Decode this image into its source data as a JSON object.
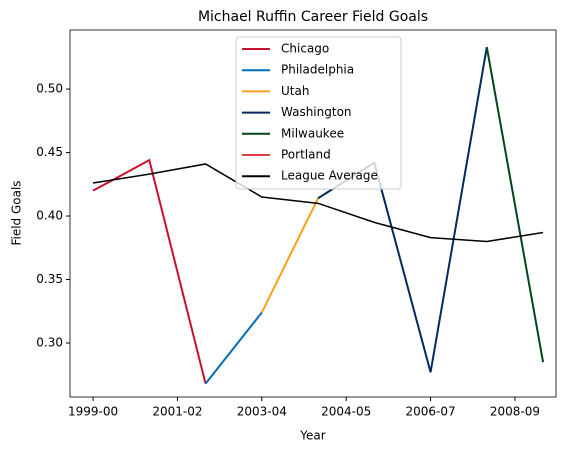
{
  "chart_data": {
    "type": "line",
    "title": "Michael Ruffin Career Field Goals",
    "x_label": "Year",
    "y_label": "Field Goals",
    "x": [
      0,
      1,
      2,
      3,
      4,
      5,
      6,
      7,
      8
    ],
    "xlim": [
      -0.41,
      8.23
    ],
    "xticks": [
      {
        "value": 0,
        "label": "1999-00"
      },
      {
        "value": 1.5,
        "label": "2001-02"
      },
      {
        "value": 3,
        "label": "2003-04"
      },
      {
        "value": 4.5,
        "label": "2004-05"
      },
      {
        "value": 6,
        "label": "2006-07"
      },
      {
        "value": 7.5,
        "label": "2008-09"
      }
    ],
    "ylim": [
      0.2575,
      0.5465
    ],
    "yticks": [
      {
        "value": 0.3,
        "label": "0.30"
      },
      0.35,
      {
        "value": 0.4,
        "label": "0.40"
      },
      0.45,
      {
        "value": 0.5,
        "label": "0.50"
      }
    ],
    "legend": "upper center",
    "series": [
      {
        "name": "Chicago",
        "color": "#c8102e",
        "values": [
          0.42,
          0.444,
          0.268,
          null,
          null,
          null,
          null,
          null,
          null
        ]
      },
      {
        "name": "Philadelphia",
        "color": "#006bb6",
        "values": [
          null,
          null,
          0.268,
          0.324,
          null,
          null,
          null,
          null,
          null
        ]
      },
      {
        "name": "Utah",
        "color": "#f9a01b",
        "values": [
          null,
          null,
          null,
          0.324,
          0.414,
          null,
          null,
          null,
          null
        ]
      },
      {
        "name": "Washington",
        "color": "#002b5c",
        "values": [
          null,
          null,
          null,
          null,
          0.414,
          0.442,
          0.277,
          0.533,
          null
        ]
      },
      {
        "name": "Milwaukee",
        "color": "#00471b",
        "values": [
          null,
          null,
          null,
          null,
          null,
          null,
          null,
          0.533,
          0.285
        ]
      },
      {
        "name": "Portland",
        "color": "#e03a3e",
        "values": [
          null,
          null,
          null,
          null,
          null,
          null,
          null,
          null,
          null
        ]
      },
      {
        "name": "League Average",
        "color": "#000000",
        "values": [
          0.426,
          0.433,
          0.441,
          0.415,
          0.41,
          0.395,
          0.383,
          0.38,
          0.387
        ]
      }
    ]
  }
}
